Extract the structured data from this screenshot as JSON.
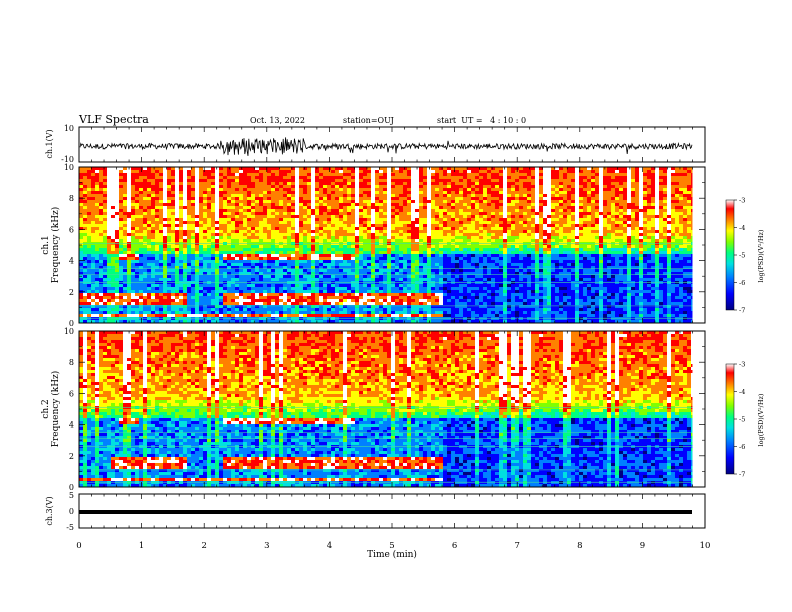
{
  "header": {
    "title": "VLF Spectra",
    "date": "Oct. 13, 2022",
    "station": "station=OUJ",
    "start": "start  UT =   4 : 10 : 0"
  },
  "chart_data": [
    {
      "type": "line",
      "panel": "waveform-ch1",
      "ylabel": "ch.1(V)",
      "ylim": [
        -10,
        10
      ],
      "yticks": [
        "10",
        "-10"
      ],
      "note": "noisy waveform, amplitude larger between ~2.3 and ~3.6 min",
      "xlim": [
        0,
        9.8
      ]
    },
    {
      "type": "heatmap",
      "panel": "spectrogram-ch1",
      "ylabel": "ch.1\nFrequency (kHz)",
      "ylim": [
        0,
        10
      ],
      "yticks": [
        "0",
        "2",
        "4",
        "6",
        "8",
        "10"
      ],
      "xlim": [
        0,
        9.8
      ],
      "colorbar": {
        "label": "log(PSD)(V²/Hz)",
        "range": [
          -7,
          -3
        ],
        "ticks": [
          "-3",
          "-4",
          "-5",
          "-6",
          "-7"
        ]
      },
      "features": [
        {
          "band_khz": [
            4.1,
            4.6
          ],
          "time_min": [
            [
              0.6,
              0.9
            ],
            [
              2.3,
              4.4
            ]
          ]
        },
        {
          "band_khz": [
            1.3,
            2.0
          ],
          "time_min": [
            [
              0.0,
              1.7
            ],
            [
              2.3,
              5.8
            ]
          ]
        },
        {
          "band_khz": [
            0.4,
            0.7
          ],
          "time_min": [
            [
              0.0,
              5.8
            ]
          ]
        }
      ]
    },
    {
      "type": "heatmap",
      "panel": "spectrogram-ch2",
      "ylabel": "ch.2\nFrequency (kHz)",
      "ylim": [
        0,
        10
      ],
      "yticks": [
        "0",
        "2",
        "4",
        "6",
        "8",
        "10"
      ],
      "xlim": [
        0,
        9.8
      ],
      "colorbar": {
        "label": "log(PSD)(V²/Hz)",
        "range": [
          -7,
          -3
        ],
        "ticks": [
          "-3",
          "-4",
          "-5",
          "-6",
          "-7"
        ]
      },
      "features": [
        {
          "band_khz": [
            4.1,
            4.6
          ],
          "time_min": [
            [
              0.6,
              0.9
            ],
            [
              2.3,
              4.4
            ]
          ]
        },
        {
          "band_khz": [
            1.2,
            2.0
          ],
          "time_min": [
            [
              0.5,
              1.7
            ],
            [
              2.3,
              5.8
            ]
          ]
        },
        {
          "band_khz": [
            0.4,
            0.7
          ],
          "time_min": [
            [
              0.0,
              5.8
            ]
          ]
        }
      ]
    },
    {
      "type": "line",
      "panel": "waveform-ch3",
      "ylabel": "ch.3(V)",
      "ylim": [
        -5,
        5
      ],
      "yticks": [
        "5",
        "0",
        "-5"
      ],
      "note": "flat thick trace near -0.3 V",
      "xlim": [
        0,
        9.8
      ]
    }
  ],
  "xaxis": {
    "label": "Time (min)",
    "range": [
      0,
      10
    ],
    "ticks": [
      "0",
      "1",
      "2",
      "3",
      "4",
      "5",
      "6",
      "7",
      "8",
      "9",
      "10"
    ]
  },
  "colors": {
    "colormap": [
      "#000080",
      "#0000ff",
      "#0080ff",
      "#00e0e0",
      "#00ff80",
      "#80ff00",
      "#ffff00",
      "#ff8000",
      "#ff0000",
      "#ffffff"
    ]
  }
}
